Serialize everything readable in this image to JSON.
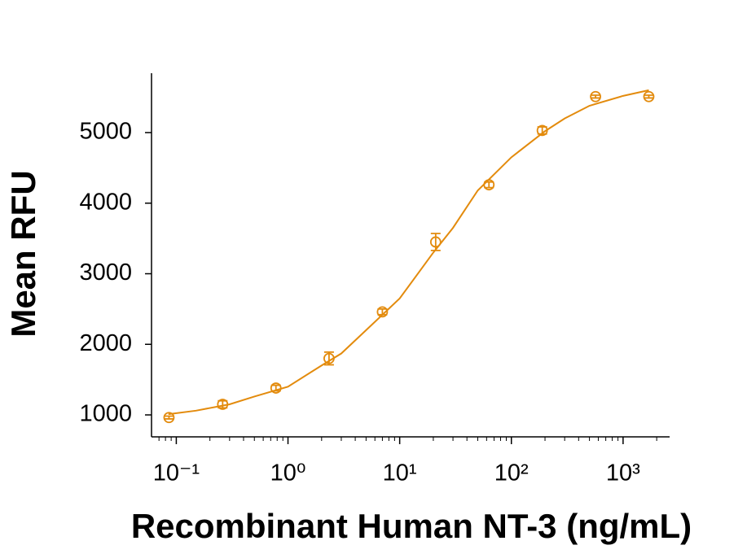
{
  "chart_data": {
    "type": "scatter",
    "x_label": "Recombinant Human NT-3 (ng/mL)",
    "y_label": "Mean RFU",
    "x_log": true,
    "color": "#e38b0d",
    "series": [
      {
        "color": "#e38b0d",
        "x": [
          0.086,
          0.26,
          0.78,
          2.33,
          7,
          21,
          63,
          189,
          567,
          1700
        ],
        "values": [
          963,
          1150,
          1380,
          1800,
          2460,
          3450,
          4260,
          5030,
          5510,
          5510
        ],
        "errors": [
          20,
          50,
          40,
          90,
          40,
          120,
          40,
          50,
          20,
          20
        ]
      }
    ],
    "curve": {
      "x": [
        0.085,
        0.15,
        0.3,
        0.5,
        1,
        2,
        3,
        5,
        10,
        20,
        30,
        50,
        100,
        200,
        300,
        500,
        1000,
        1700
      ],
      "values": [
        1010,
        1060,
        1150,
        1260,
        1400,
        1700,
        1870,
        2200,
        2650,
        3300,
        3650,
        4180,
        4650,
        5020,
        5200,
        5380,
        5520,
        5600
      ]
    },
    "xlim": [
      0.06,
      2610
    ],
    "ylim": [
      689,
      5841
    ],
    "xticks": [
      {
        "value": 0.1,
        "label": "10⁻¹"
      },
      {
        "value": 1,
        "label": "10⁰"
      },
      {
        "value": 10,
        "label": "10¹"
      },
      {
        "value": 100,
        "label": "10²"
      },
      {
        "value": 1000,
        "label": "10³"
      }
    ],
    "xminorticks": [
      0.07,
      0.08,
      0.09,
      0.2,
      0.3,
      0.4,
      0.5,
      0.6,
      0.7,
      0.8,
      0.9,
      2,
      3,
      4,
      5,
      6,
      7,
      8,
      9,
      20,
      30,
      40,
      50,
      60,
      70,
      80,
      90,
      200,
      300,
      400,
      500,
      600,
      700,
      800,
      900,
      2000
    ],
    "yticks": [
      1000,
      2000,
      3000,
      4000,
      5000
    ]
  }
}
